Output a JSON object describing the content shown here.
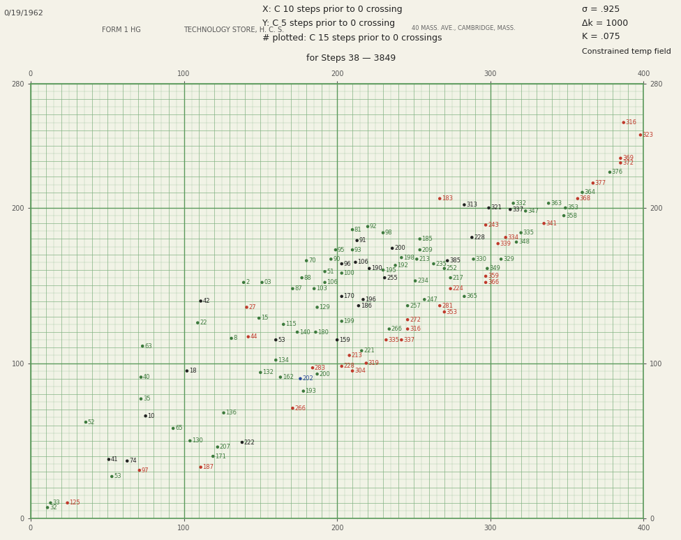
{
  "chart_data": {
    "type": "scatter",
    "annotations": [
      "0/19/1962",
      "FORM 1 HG",
      "TECHNOLOGY STORE, H. C. S.",
      "40 MASS. AVE., CAMBRIDGE, MASS.",
      "X: C 10 steps prior to 0 crossing",
      "Y: C 5 steps prior to 0 crossing",
      "# plotted: C 15 steps prior to 0 crossings",
      "for Steps 38 — 3849",
      "σ = .925",
      "Δk = 1000",
      "K = .075",
      "Constrained temp field"
    ],
    "xlim": [
      0,
      400
    ],
    "ylim": [
      0,
      280
    ],
    "xticks": [
      0,
      100,
      200,
      300,
      400
    ],
    "yticks": [
      0,
      100,
      200,
      280
    ],
    "grid": true,
    "marker": "o",
    "x": [
      387,
      398,
      385,
      385,
      378,
      367,
      360,
      357,
      338,
      349,
      348,
      335,
      315,
      313,
      323,
      299,
      283,
      267,
      297,
      320,
      288,
      310,
      317,
      305,
      289,
      307,
      298,
      297,
      297,
      283,
      274,
      274,
      270,
      263,
      272,
      252,
      254,
      254,
      236,
      242,
      238,
      230,
      231,
      221,
      251,
      257,
      246,
      267,
      270,
      246,
      246,
      234,
      232,
      242,
      230,
      220,
      210,
      213,
      199,
      210,
      196,
      203,
      212,
      203,
      180,
      192,
      177,
      192,
      171,
      185,
      203,
      217,
      214,
      187,
      203,
      200,
      186,
      174,
      165,
      216,
      208,
      219,
      203,
      210,
      184,
      187,
      176,
      163,
      178,
      171,
      150,
      160,
      160,
      142,
      131,
      149,
      141,
      111,
      139,
      151,
      109,
      73,
      72,
      102,
      72,
      75,
      36,
      93,
      126,
      104,
      122,
      138,
      119,
      111,
      51,
      63,
      71,
      53,
      13,
      24,
      11
    ],
    "y": [
      255,
      247,
      232,
      229,
      223,
      216,
      210,
      206,
      203,
      200,
      195,
      190,
      203,
      199,
      198,
      200,
      202,
      206,
      189,
      184,
      181,
      181,
      178,
      177,
      167,
      167,
      161,
      156,
      152,
      143,
      155,
      148,
      161,
      164,
      166,
      167,
      173,
      180,
      174,
      168,
      163,
      160,
      155,
      161,
      153,
      141,
      137,
      137,
      133,
      128,
      122,
      122,
      115,
      115,
      184,
      188,
      186,
      179,
      173,
      173,
      167,
      164,
      165,
      158,
      166,
      159,
      155,
      152,
      148,
      148,
      143,
      141,
      137,
      136,
      127,
      115,
      120,
      120,
      125,
      108,
      105,
      100,
      98,
      95,
      97,
      93,
      90,
      91,
      82,
      71,
      94,
      102,
      115,
      117,
      116,
      129,
      136,
      140,
      152,
      152,
      126,
      111,
      91,
      95,
      77,
      66,
      62,
      58,
      68,
      50,
      46,
      49,
      40,
      33,
      38,
      37,
      31,
      27,
      10,
      10,
      7
    ],
    "labels": [
      "316",
      "323",
      "369",
      "372",
      "376",
      "377",
      "364",
      "368",
      "363",
      "353",
      "358",
      "341",
      "332",
      "337",
      "347",
      "321",
      "313",
      "183",
      "243",
      "335",
      "228",
      "334",
      "348",
      "339",
      "330",
      "329",
      "349",
      "359",
      "366",
      "365",
      "217",
      "224",
      "252",
      "235",
      "385",
      "213",
      "209",
      "185",
      "200",
      "198",
      "192",
      "195",
      "255",
      "190",
      "234",
      "247",
      "257",
      "281",
      "353",
      "272",
      "316",
      "266",
      "335",
      "337",
      "98",
      "92",
      "81",
      "91",
      "95",
      "93",
      "90",
      "96",
      "106",
      "100",
      "70",
      "51",
      "88",
      "106",
      "87",
      "103",
      "170",
      "196",
      "186",
      "129",
      "199",
      "159",
      "180",
      "140",
      "115",
      "221",
      "213",
      "319",
      "228",
      "304",
      "283",
      "200",
      "202",
      "162",
      "193",
      "266",
      "132",
      "134",
      "53",
      "44",
      "8",
      "15",
      "27",
      "42",
      "2",
      "03",
      "22",
      "63",
      "40",
      "18",
      "35",
      "10",
      "52",
      "65",
      "136",
      "130",
      "207",
      "222",
      "171",
      "187",
      "41",
      "74",
      "97",
      "53",
      "33",
      "125",
      "32"
    ],
    "colors": [
      "#c0392b",
      "#c0392b",
      "#c0392b",
      "#c0392b",
      "#3d7a3d",
      "#c0392b",
      "#3d7a3d",
      "#c0392b",
      "#3d7a3d",
      "#3d7a3d",
      "#3d7a3d",
      "#c0392b",
      "#3d7a3d",
      "#222222",
      "#3d7a3d",
      "#222222",
      "#222222",
      "#c0392b",
      "#c0392b",
      "#3d7a3d",
      "#222222",
      "#c0392b",
      "#3d7a3d",
      "#c0392b",
      "#3d7a3d",
      "#3d7a3d",
      "#3d7a3d",
      "#c0392b",
      "#c0392b",
      "#3d7a3d",
      "#3d7a3d",
      "#c0392b",
      "#3d7a3d",
      "#3d7a3d",
      "#222222",
      "#3d7a3d",
      "#3d7a3d",
      "#3d7a3d",
      "#222222",
      "#3d7a3d",
      "#3d7a3d",
      "#3d7a3d",
      "#222222",
      "#222222",
      "#3d7a3d",
      "#3d7a3d",
      "#3d7a3d",
      "#c0392b",
      "#c0392b",
      "#c0392b",
      "#c0392b",
      "#3d7a3d",
      "#c0392b",
      "#c0392b",
      "#3d7a3d",
      "#3d7a3d",
      "#3d7a3d",
      "#222222",
      "#3d7a3d",
      "#3d7a3d",
      "#3d7a3d",
      "#222222",
      "#222222",
      "#3d7a3d",
      "#3d7a3d",
      "#3d7a3d",
      "#3d7a3d",
      "#3d7a3d",
      "#3d7a3d",
      "#3d7a3d",
      "#222222",
      "#222222",
      "#222222",
      "#3d7a3d",
      "#3d7a3d",
      "#222222",
      "#3d7a3d",
      "#3d7a3d",
      "#3d7a3d",
      "#3d7a3d",
      "#c0392b",
      "#c0392b",
      "#c0392b",
      "#c0392b",
      "#c0392b",
      "#3d7a3d",
      "#2a4a9a",
      "#3d7a3d",
      "#3d7a3d",
      "#c0392b",
      "#3d7a3d",
      "#3d7a3d",
      "#222222",
      "#c0392b",
      "#3d7a3d",
      "#3d7a3d",
      "#c0392b",
      "#222222",
      "#3d7a3d",
      "#3d7a3d",
      "#3d7a3d",
      "#3d7a3d",
      "#3d7a3d",
      "#222222",
      "#3d7a3d",
      "#222222",
      "#3d7a3d",
      "#3d7a3d",
      "#3d7a3d",
      "#3d7a3d",
      "#3d7a3d",
      "#222222",
      "#3d7a3d",
      "#c0392b",
      "#222222",
      "#222222",
      "#c0392b",
      "#3d7a3d",
      "#3d7a3d",
      "#c0392b",
      "#3d7a3d"
    ]
  }
}
